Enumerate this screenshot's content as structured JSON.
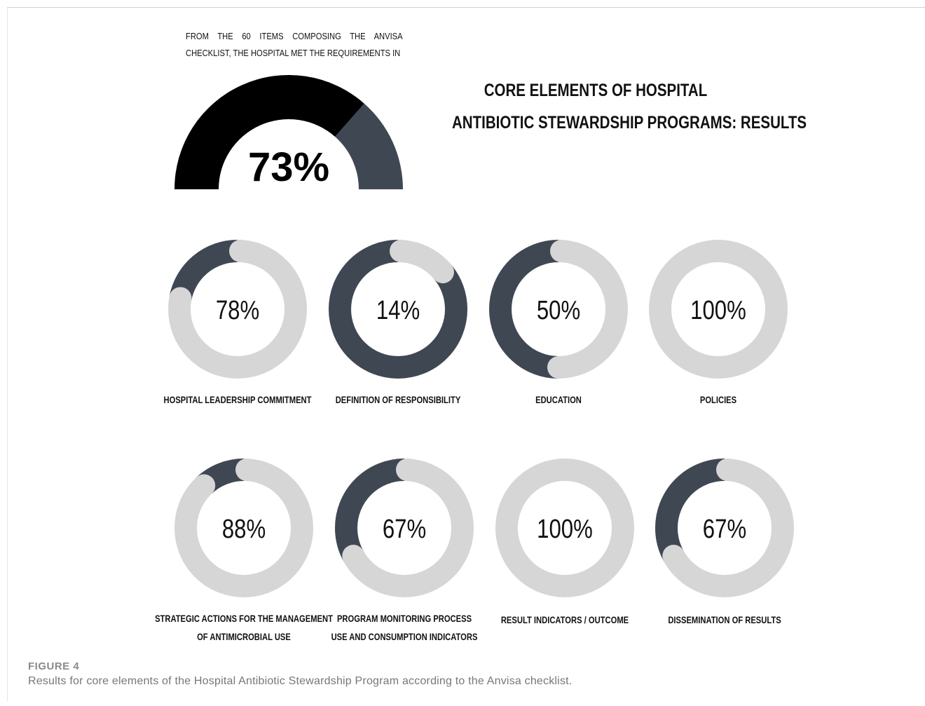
{
  "intro_text": "From the 60 items composing the Anvisa checklist, the hospital met the requirements in",
  "title_line1": "CORE ELEMENTS OF HOSPITAL",
  "title_line2": "ANTIBIOTIC STEWARDSHIP PROGRAMS: RESULTS",
  "figure_label": "FIGURE 4",
  "figure_caption": "Results for core elements of the Hospital Antibiotic Stewardship Program according to the Anvisa checklist.",
  "colors": {
    "filled": "#3f4753",
    "remaining": "#d6d6d6",
    "gauge_main": "#000000"
  },
  "chart_data": [
    {
      "type": "pie",
      "subtype": "semicircle-gauge",
      "value": 73,
      "label": "73%",
      "segments": [
        {
          "name": "met",
          "value": 73,
          "color": "#000000"
        },
        {
          "name": "remaining",
          "value": 27,
          "color": "#3f4753"
        }
      ]
    },
    {
      "type": "pie",
      "subtype": "donut",
      "items": [
        {
          "category": "HOSPITAL LEADERSHIP COMMITMENT",
          "label": "78%",
          "value": 78
        },
        {
          "category": "DEFINITION OF RESPONSIBILITY",
          "label": "14%",
          "value": 14
        },
        {
          "category": "EDUCATION",
          "label": "50%",
          "value": 50
        },
        {
          "category": "POLICIES",
          "label": "100%",
          "value": 100
        },
        {
          "category": "STRATEGIC ACTIONS FOR THE MANAGEMENT OF ANTIMICROBIAL USE",
          "category_lines": [
            "STRATEGIC ACTIONS FOR THE MANAGEMENT",
            "OF ANTIMICROBIAL USE"
          ],
          "label": "88%",
          "value": 88
        },
        {
          "category": "PROGRAM MONITORING PROCESS USE AND CONSUMPTION INDICATORS",
          "category_lines": [
            "PROGRAM MONITORING PROCESS",
            "USE AND CONSUMPTION INDICATORS"
          ],
          "label": "67%",
          "value": 67
        },
        {
          "category": "RESULT INDICATORS / OUTCOME",
          "label": "100%",
          "value": 100
        },
        {
          "category": "DISSEMINATION OF RESULTS",
          "label": "67%",
          "value": 67
        }
      ]
    }
  ]
}
